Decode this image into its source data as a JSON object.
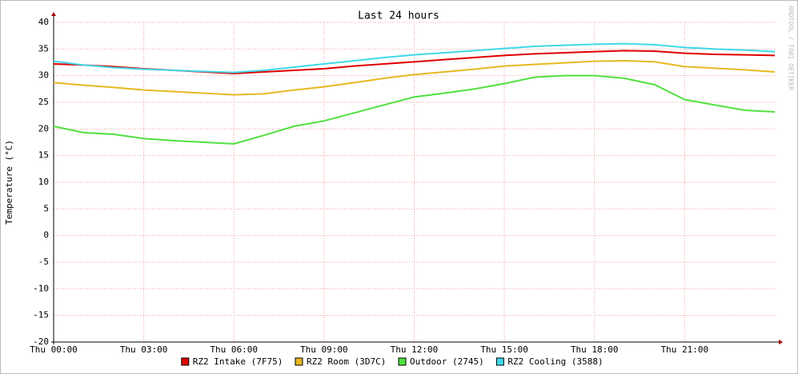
{
  "chart_data": {
    "type": "line",
    "title": "Last 24 hours",
    "y_label": "Temperature (°C)",
    "watermark": "RRDTOOL / TOBI OETIKER",
    "x": [
      0,
      1,
      2,
      3,
      4,
      5,
      6,
      7,
      8,
      9,
      10,
      11,
      12,
      13,
      14,
      15,
      16,
      17,
      18,
      19,
      20,
      21,
      22,
      23,
      24
    ],
    "xlim": [
      0,
      24
    ],
    "xticks": [
      {
        "value": 0,
        "label": "Thu 00:00"
      },
      {
        "value": 3,
        "label": "Thu 03:00"
      },
      {
        "value": 6,
        "label": "Thu 06:00"
      },
      {
        "value": 9,
        "label": "Thu 09:00"
      },
      {
        "value": 12,
        "label": "Thu 12:00"
      },
      {
        "value": 15,
        "label": "Thu 15:00"
      },
      {
        "value": 18,
        "label": "Thu 18:00"
      },
      {
        "value": 21,
        "label": "Thu 21:00"
      }
    ],
    "ylim": [
      -20,
      40
    ],
    "yticks": [
      -20,
      -15,
      -10,
      -5,
      0,
      5,
      10,
      15,
      20,
      25,
      30,
      35,
      40
    ],
    "grid": true,
    "series": [
      {
        "name": "RZ2 Intake (7F75)",
        "color": "#e00000",
        "values": [
          32.2,
          32,
          31.7,
          31.3,
          31,
          30.7,
          30.4,
          30.7,
          31,
          31.3,
          31.8,
          32.2,
          32.6,
          33,
          33.4,
          33.8,
          34.1,
          34.3,
          34.5,
          34.7,
          34.6,
          34.2,
          34,
          33.9,
          33.8
        ]
      },
      {
        "name": "RZ2 Room (3D7C)",
        "color": "#e6b820",
        "values": [
          28.7,
          28.2,
          27.8,
          27.3,
          27,
          26.7,
          26.4,
          26.6,
          27.3,
          27.9,
          28.7,
          29.5,
          30.2,
          30.7,
          31.2,
          31.8,
          32.1,
          32.4,
          32.7,
          32.8,
          32.6,
          31.7,
          31.4,
          31.1,
          30.7
        ]
      },
      {
        "name": "Outdoor (2745)",
        "color": "#50e040",
        "values": [
          20.5,
          19.3,
          19,
          18.2,
          17.8,
          17.5,
          17.2,
          18.8,
          20.5,
          21.5,
          23,
          24.5,
          26,
          26.7,
          27.5,
          28.5,
          29.7,
          30,
          30,
          29.5,
          28.3,
          25.5,
          24.5,
          23.5,
          23.2
        ]
      },
      {
        "name": "RZ2 Cooling (3588)",
        "color": "#40d8e8",
        "values": [
          32.7,
          32,
          31.5,
          31.2,
          31,
          30.8,
          30.6,
          31,
          31.6,
          32.2,
          32.8,
          33.4,
          33.9,
          34.3,
          34.7,
          35.1,
          35.5,
          35.7,
          35.9,
          36,
          35.8,
          35.3,
          35,
          34.8,
          34.5
        ]
      }
    ]
  }
}
